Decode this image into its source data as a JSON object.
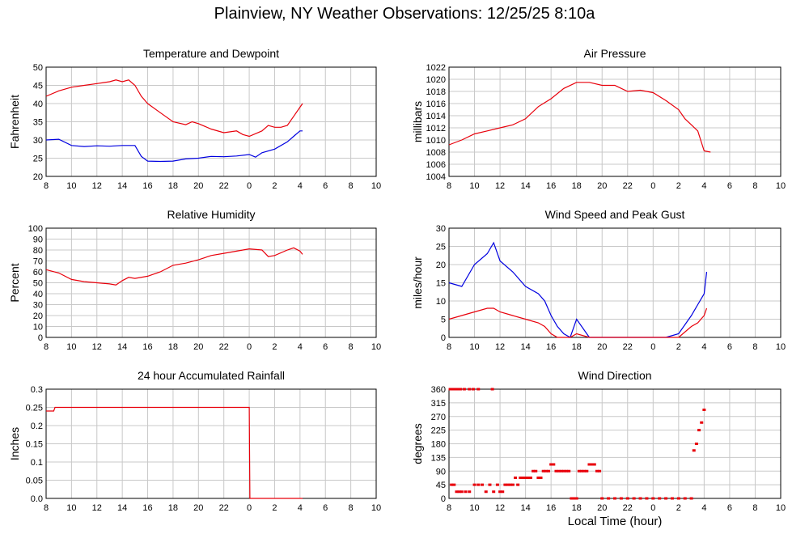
{
  "page": {
    "title": "Plainview, NY Weather Observations: 12/25/25 8:10a",
    "x_axis_title": "Local Time (hour)"
  },
  "colors": {
    "red": "#e8000b",
    "blue": "#0000e0",
    "axis": "#000000"
  },
  "chart_data": [
    {
      "type": "line",
      "title": "Temperature and Dewpoint",
      "ylabel": "Fahrenheit",
      "xlabel": "",
      "x_tick_labels": [
        "8",
        "10",
        "12",
        "14",
        "16",
        "18",
        "20",
        "22",
        "0",
        "2",
        "4",
        "6",
        "8",
        "10"
      ],
      "y_ticks": [
        20,
        25,
        30,
        35,
        40,
        45,
        50
      ],
      "xlim": [
        0,
        26
      ],
      "ylim": [
        20,
        50
      ],
      "series": [
        {
          "color": "#e8000b",
          "x": [
            0,
            1,
            2,
            3,
            4,
            5,
            5.5,
            6,
            6.5,
            7,
            7.5,
            8,
            9,
            10,
            11,
            11.5,
            12,
            13,
            14,
            15,
            15.5,
            16,
            17,
            17.5,
            18,
            18.5,
            19,
            19.5,
            20,
            20.2
          ],
          "y": [
            42,
            43.5,
            44.5,
            45,
            45.5,
            46,
            46.5,
            46,
            46.5,
            45,
            42,
            40,
            37.5,
            35,
            34.2,
            35,
            34.5,
            33,
            32,
            32.5,
            31.5,
            31,
            32.5,
            34,
            33.5,
            33.5,
            34,
            36.5,
            39,
            40
          ]
        },
        {
          "color": "#0000e0",
          "x": [
            0,
            1,
            2,
            3,
            4,
            5,
            6,
            7,
            7.5,
            8,
            9,
            10,
            11,
            12,
            13,
            14,
            15,
            16,
            16.5,
            17,
            18,
            19,
            19.5,
            20,
            20.2
          ],
          "y": [
            30,
            30.2,
            28.5,
            28.2,
            28.4,
            28.3,
            28.5,
            28.5,
            25.5,
            24.2,
            24.1,
            24.2,
            24.8,
            25,
            25.5,
            25.4,
            25.6,
            26,
            25.3,
            26.5,
            27.5,
            29.5,
            31,
            32.5,
            32.5
          ]
        }
      ]
    },
    {
      "type": "line",
      "title": "Air Pressure",
      "ylabel": "millibars",
      "xlabel": "",
      "x_tick_labels": [
        "8",
        "10",
        "12",
        "14",
        "16",
        "18",
        "20",
        "22",
        "0",
        "2",
        "4",
        "6",
        "8",
        "10"
      ],
      "y_ticks": [
        1004,
        1006,
        1008,
        1010,
        1012,
        1014,
        1016,
        1018,
        1020,
        1022
      ],
      "xlim": [
        0,
        26
      ],
      "ylim": [
        1004,
        1022
      ],
      "series": [
        {
          "color": "#e8000b",
          "x": [
            0,
            1,
            2,
            3,
            4,
            5,
            6,
            7,
            8,
            9,
            10,
            11,
            12,
            13,
            14,
            15,
            16,
            17,
            18,
            18.5,
            19,
            19.5,
            20,
            20.5
          ],
          "y": [
            1009.2,
            1010,
            1011,
            1011.5,
            1012,
            1012.5,
            1013.5,
            1015.5,
            1016.8,
            1018.5,
            1019.5,
            1019.5,
            1019,
            1019,
            1018,
            1018.2,
            1017.8,
            1016.5,
            1015,
            1013.5,
            1012.5,
            1011.5,
            1008.2,
            1008
          ]
        }
      ]
    },
    {
      "type": "line",
      "title": "Relative Humidity",
      "ylabel": "Percent",
      "xlabel": "",
      "x_tick_labels": [
        "8",
        "10",
        "12",
        "14",
        "16",
        "18",
        "20",
        "22",
        "0",
        "2",
        "4",
        "6",
        "8",
        "10"
      ],
      "y_ticks": [
        0,
        10,
        20,
        30,
        40,
        50,
        60,
        70,
        80,
        90,
        100
      ],
      "xlim": [
        0,
        26
      ],
      "ylim": [
        0,
        100
      ],
      "series": [
        {
          "color": "#e8000b",
          "x": [
            0,
            1,
            2,
            3,
            4,
            5,
            5.5,
            6,
            6.5,
            7,
            8,
            9,
            10,
            11,
            12,
            13,
            14,
            15,
            16,
            17,
            17.5,
            18,
            19,
            19.5,
            20,
            20.2
          ],
          "y": [
            62,
            59,
            53,
            51,
            50,
            49,
            48,
            52,
            55,
            54,
            56,
            60,
            66,
            68,
            71,
            75,
            77,
            79,
            81,
            80,
            74,
            75,
            80,
            82,
            79,
            76
          ]
        }
      ]
    },
    {
      "type": "line",
      "title": "Wind Speed and Peak Gust",
      "ylabel": "miles/hour",
      "xlabel": "",
      "x_tick_labels": [
        "8",
        "10",
        "12",
        "14",
        "16",
        "18",
        "20",
        "22",
        "0",
        "2",
        "4",
        "6",
        "8",
        "10"
      ],
      "y_ticks": [
        0,
        5,
        10,
        15,
        20,
        25,
        30
      ],
      "xlim": [
        0,
        26
      ],
      "ylim": [
        0,
        30
      ],
      "series": [
        {
          "color": "#0000e0",
          "x": [
            0,
            1,
            2,
            3,
            3.5,
            4,
            5,
            6,
            7,
            7.5,
            8,
            8.5,
            9,
            9.5,
            10,
            11,
            12,
            13,
            14,
            15,
            16,
            17,
            18,
            19,
            19.5,
            20,
            20.2
          ],
          "y": [
            15,
            14,
            20,
            23,
            26,
            21,
            18,
            14,
            12,
            10,
            6,
            3,
            1,
            0,
            5,
            0,
            0,
            0,
            0,
            0,
            0,
            0,
            1,
            6,
            9,
            12,
            18
          ]
        },
        {
          "color": "#e8000b",
          "x": [
            0,
            1,
            2,
            3,
            3.5,
            4,
            5,
            6,
            7,
            7.5,
            8,
            8.5,
            9,
            9.5,
            10,
            11,
            12,
            13,
            14,
            15,
            16,
            17,
            18,
            19,
            19.5,
            20,
            20.2
          ],
          "y": [
            5,
            6,
            7,
            8,
            8,
            7,
            6,
            5,
            4,
            3,
            1,
            0,
            0,
            0,
            1,
            0,
            0,
            0,
            0,
            0,
            0,
            0,
            0,
            3,
            4,
            6,
            8
          ]
        }
      ]
    },
    {
      "type": "line",
      "title": "24 hour Accumulated Rainfall",
      "ylabel": "Inches",
      "xlabel": "",
      "x_tick_labels": [
        "8",
        "10",
        "12",
        "14",
        "16",
        "18",
        "20",
        "22",
        "0",
        "2",
        "4",
        "6",
        "8",
        "10"
      ],
      "y_ticks": [
        0.0,
        0.05,
        0.1,
        0.15,
        0.2,
        0.25,
        0.3
      ],
      "y_tick_labels": [
        "0.0",
        "0.05",
        "0.1",
        "0.15",
        "0.2",
        "0.25",
        "0.3"
      ],
      "xlim": [
        0,
        26
      ],
      "ylim": [
        0,
        0.3
      ],
      "series": [
        {
          "color": "#e8000b",
          "x": [
            0,
            0.6,
            0.7,
            16,
            16.05,
            20.2
          ],
          "y": [
            0.24,
            0.24,
            0.25,
            0.25,
            0,
            0
          ]
        }
      ]
    },
    {
      "type": "scatter",
      "title": "Wind Direction",
      "ylabel": "degrees",
      "xlabel": "Local Time (hour)",
      "x_tick_labels": [
        "8",
        "10",
        "12",
        "14",
        "16",
        "18",
        "20",
        "22",
        "0",
        "2",
        "4",
        "6",
        "8",
        "10"
      ],
      "y_ticks": [
        0,
        45,
        90,
        135,
        180,
        225,
        270,
        315,
        360
      ],
      "xlim": [
        0,
        26
      ],
      "ylim": [
        0,
        360
      ],
      "series": [
        {
          "color": "#e8000b",
          "x": [
            0.1,
            0.3,
            0.5,
            0.7,
            0.9,
            1.2,
            1.6,
            1.9,
            2.3,
            3.4,
            0.2,
            0.4,
            0.6,
            0.8,
            1.0,
            1.3,
            1.6,
            2.0,
            2.3,
            2.6,
            2.9,
            3.2,
            3.5,
            3.8,
            4.0,
            4.2,
            4.4,
            4.6,
            4.8,
            5.0,
            5.2,
            5.4,
            5.6,
            5.8,
            6.0,
            6.2,
            6.4,
            6.6,
            6.8,
            7.0,
            7.2,
            7.4,
            7.6,
            7.8,
            8.0,
            8.2,
            8.4,
            8.6,
            8.8,
            9.0,
            9.2,
            9.4,
            9.6,
            9.8,
            10.0,
            10.2,
            10.4,
            10.6,
            10.8,
            11.0,
            11.2,
            11.4,
            11.6,
            11.8,
            12.0,
            12.5,
            13.0,
            13.5,
            14.0,
            14.5,
            15.0,
            15.5,
            16.0,
            16.5,
            17.0,
            17.5,
            18.0,
            18.5,
            19.0,
            19.2,
            19.4,
            19.6,
            19.8,
            20.0
          ],
          "y": [
            360,
            360,
            360,
            360,
            360,
            360,
            360,
            360,
            360,
            360,
            45,
            45,
            22,
            22,
            22,
            22,
            22,
            45,
            45,
            45,
            22,
            45,
            22,
            45,
            22,
            22,
            45,
            45,
            45,
            45,
            68,
            45,
            68,
            68,
            68,
            68,
            68,
            90,
            90,
            68,
            68,
            90,
            90,
            90,
            112,
            112,
            90,
            90,
            90,
            90,
            90,
            90,
            0,
            0,
            0,
            90,
            90,
            90,
            90,
            112,
            112,
            112,
            90,
            90,
            0,
            0,
            0,
            0,
            0,
            0,
            0,
            0,
            0,
            0,
            0,
            0,
            0,
            0,
            0,
            158,
            180,
            225,
            250,
            292
          ]
        }
      ]
    }
  ]
}
